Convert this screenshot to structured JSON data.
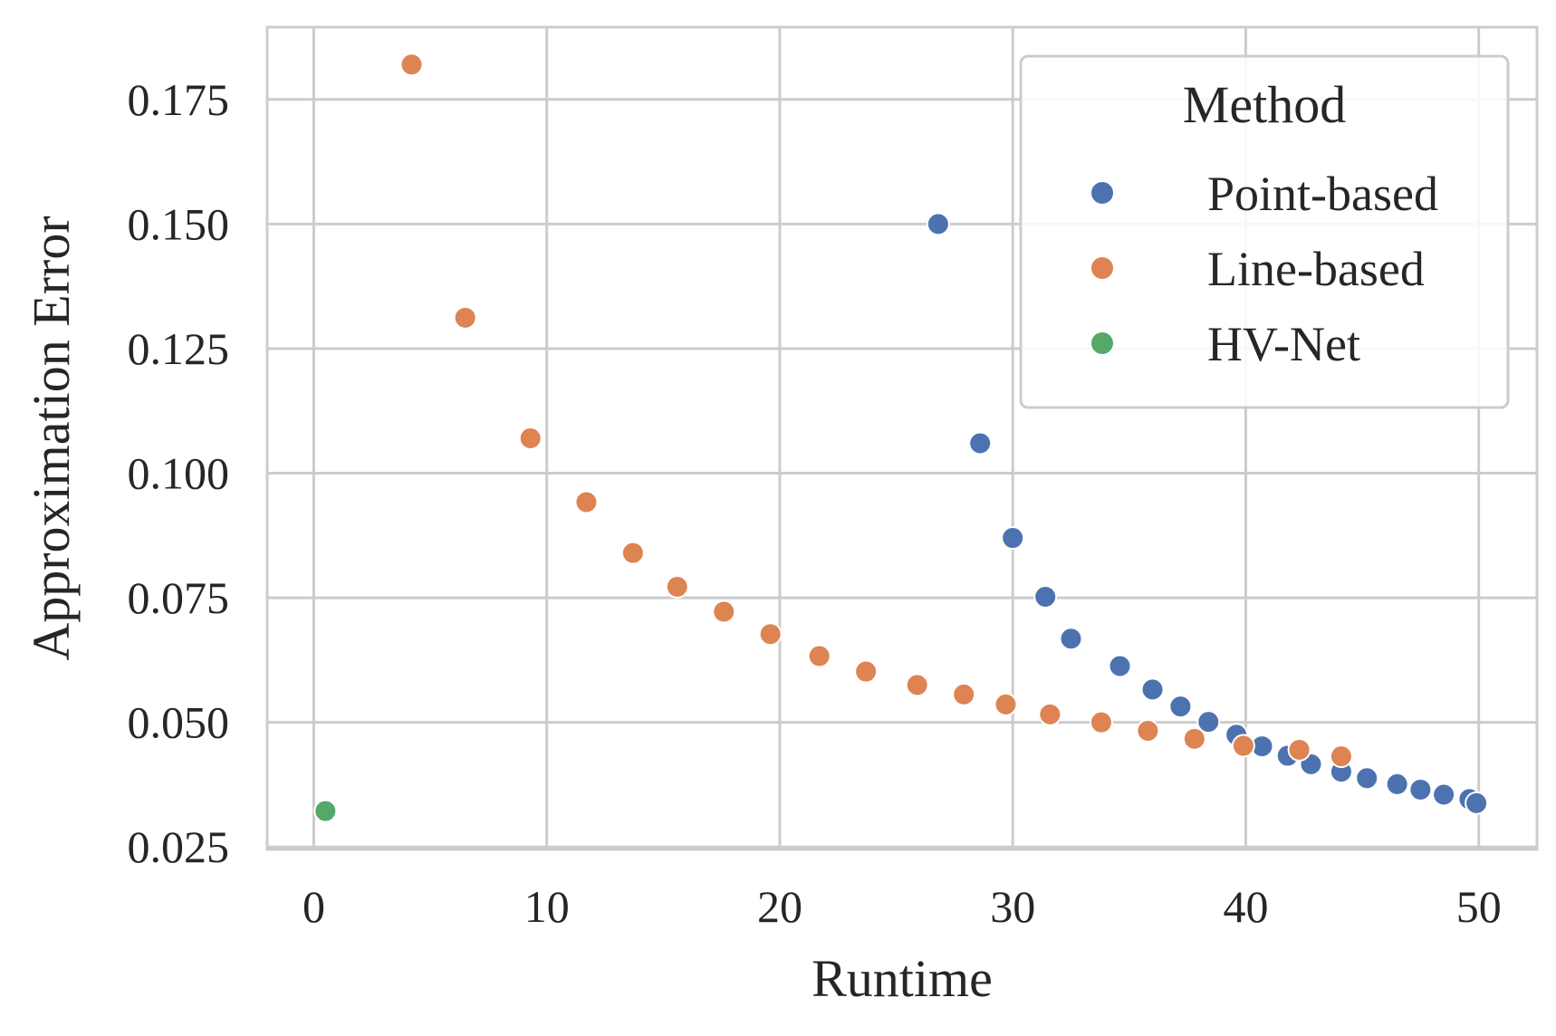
{
  "chart_data": {
    "type": "scatter",
    "xlabel": "Runtime",
    "ylabel": "Approximation Error",
    "xlim": [
      -2,
      52.5
    ],
    "ylim": [
      0.0245,
      0.1895
    ],
    "xticks": [
      0,
      10,
      20,
      30,
      40,
      50
    ],
    "xtick_labels": [
      "0",
      "10",
      "20",
      "30",
      "40",
      "50"
    ],
    "yticks": [
      0.025,
      0.05,
      0.075,
      0.1,
      0.125,
      0.15,
      0.175
    ],
    "ytick_labels": [
      "0.025",
      "0.050",
      "0.075",
      "0.100",
      "0.125",
      "0.150",
      "0.175"
    ],
    "grid": true,
    "legend": {
      "title": "Method",
      "placement": "top-right"
    },
    "series": [
      {
        "name": "Point-based",
        "color": "#4c72b0",
        "points": [
          [
            26.8,
            0.15
          ],
          [
            28.6,
            0.106
          ],
          [
            30.0,
            0.087
          ],
          [
            31.4,
            0.0752
          ],
          [
            32.5,
            0.0668
          ],
          [
            34.6,
            0.0613
          ],
          [
            36.0,
            0.0566
          ],
          [
            37.2,
            0.0532
          ],
          [
            38.4,
            0.0501
          ],
          [
            39.6,
            0.0475
          ],
          [
            40.7,
            0.0452
          ],
          [
            41.8,
            0.0433
          ],
          [
            42.8,
            0.0416
          ],
          [
            44.1,
            0.0401
          ],
          [
            45.2,
            0.0388
          ],
          [
            46.5,
            0.0376
          ],
          [
            47.5,
            0.0365
          ],
          [
            48.5,
            0.0355
          ],
          [
            49.6,
            0.0346
          ],
          [
            49.9,
            0.0338
          ]
        ]
      },
      {
        "name": "Line-based",
        "color": "#dd8452",
        "points": [
          [
            4.2,
            0.182
          ],
          [
            6.5,
            0.1312
          ],
          [
            9.3,
            0.107
          ],
          [
            11.7,
            0.0942
          ],
          [
            13.7,
            0.084
          ],
          [
            15.6,
            0.0772
          ],
          [
            17.6,
            0.0722
          ],
          [
            19.6,
            0.0677
          ],
          [
            21.7,
            0.0633
          ],
          [
            23.7,
            0.0602
          ],
          [
            25.9,
            0.0575
          ],
          [
            27.9,
            0.0556
          ],
          [
            29.7,
            0.0536
          ],
          [
            31.6,
            0.0516
          ],
          [
            33.8,
            0.05
          ],
          [
            35.8,
            0.0483
          ],
          [
            37.8,
            0.0467
          ],
          [
            39.9,
            0.0453
          ],
          [
            42.3,
            0.0445
          ],
          [
            44.1,
            0.0432
          ]
        ]
      },
      {
        "name": "HV-Net",
        "color": "#55a868",
        "points": [
          [
            0.5,
            0.0322
          ]
        ]
      }
    ]
  }
}
